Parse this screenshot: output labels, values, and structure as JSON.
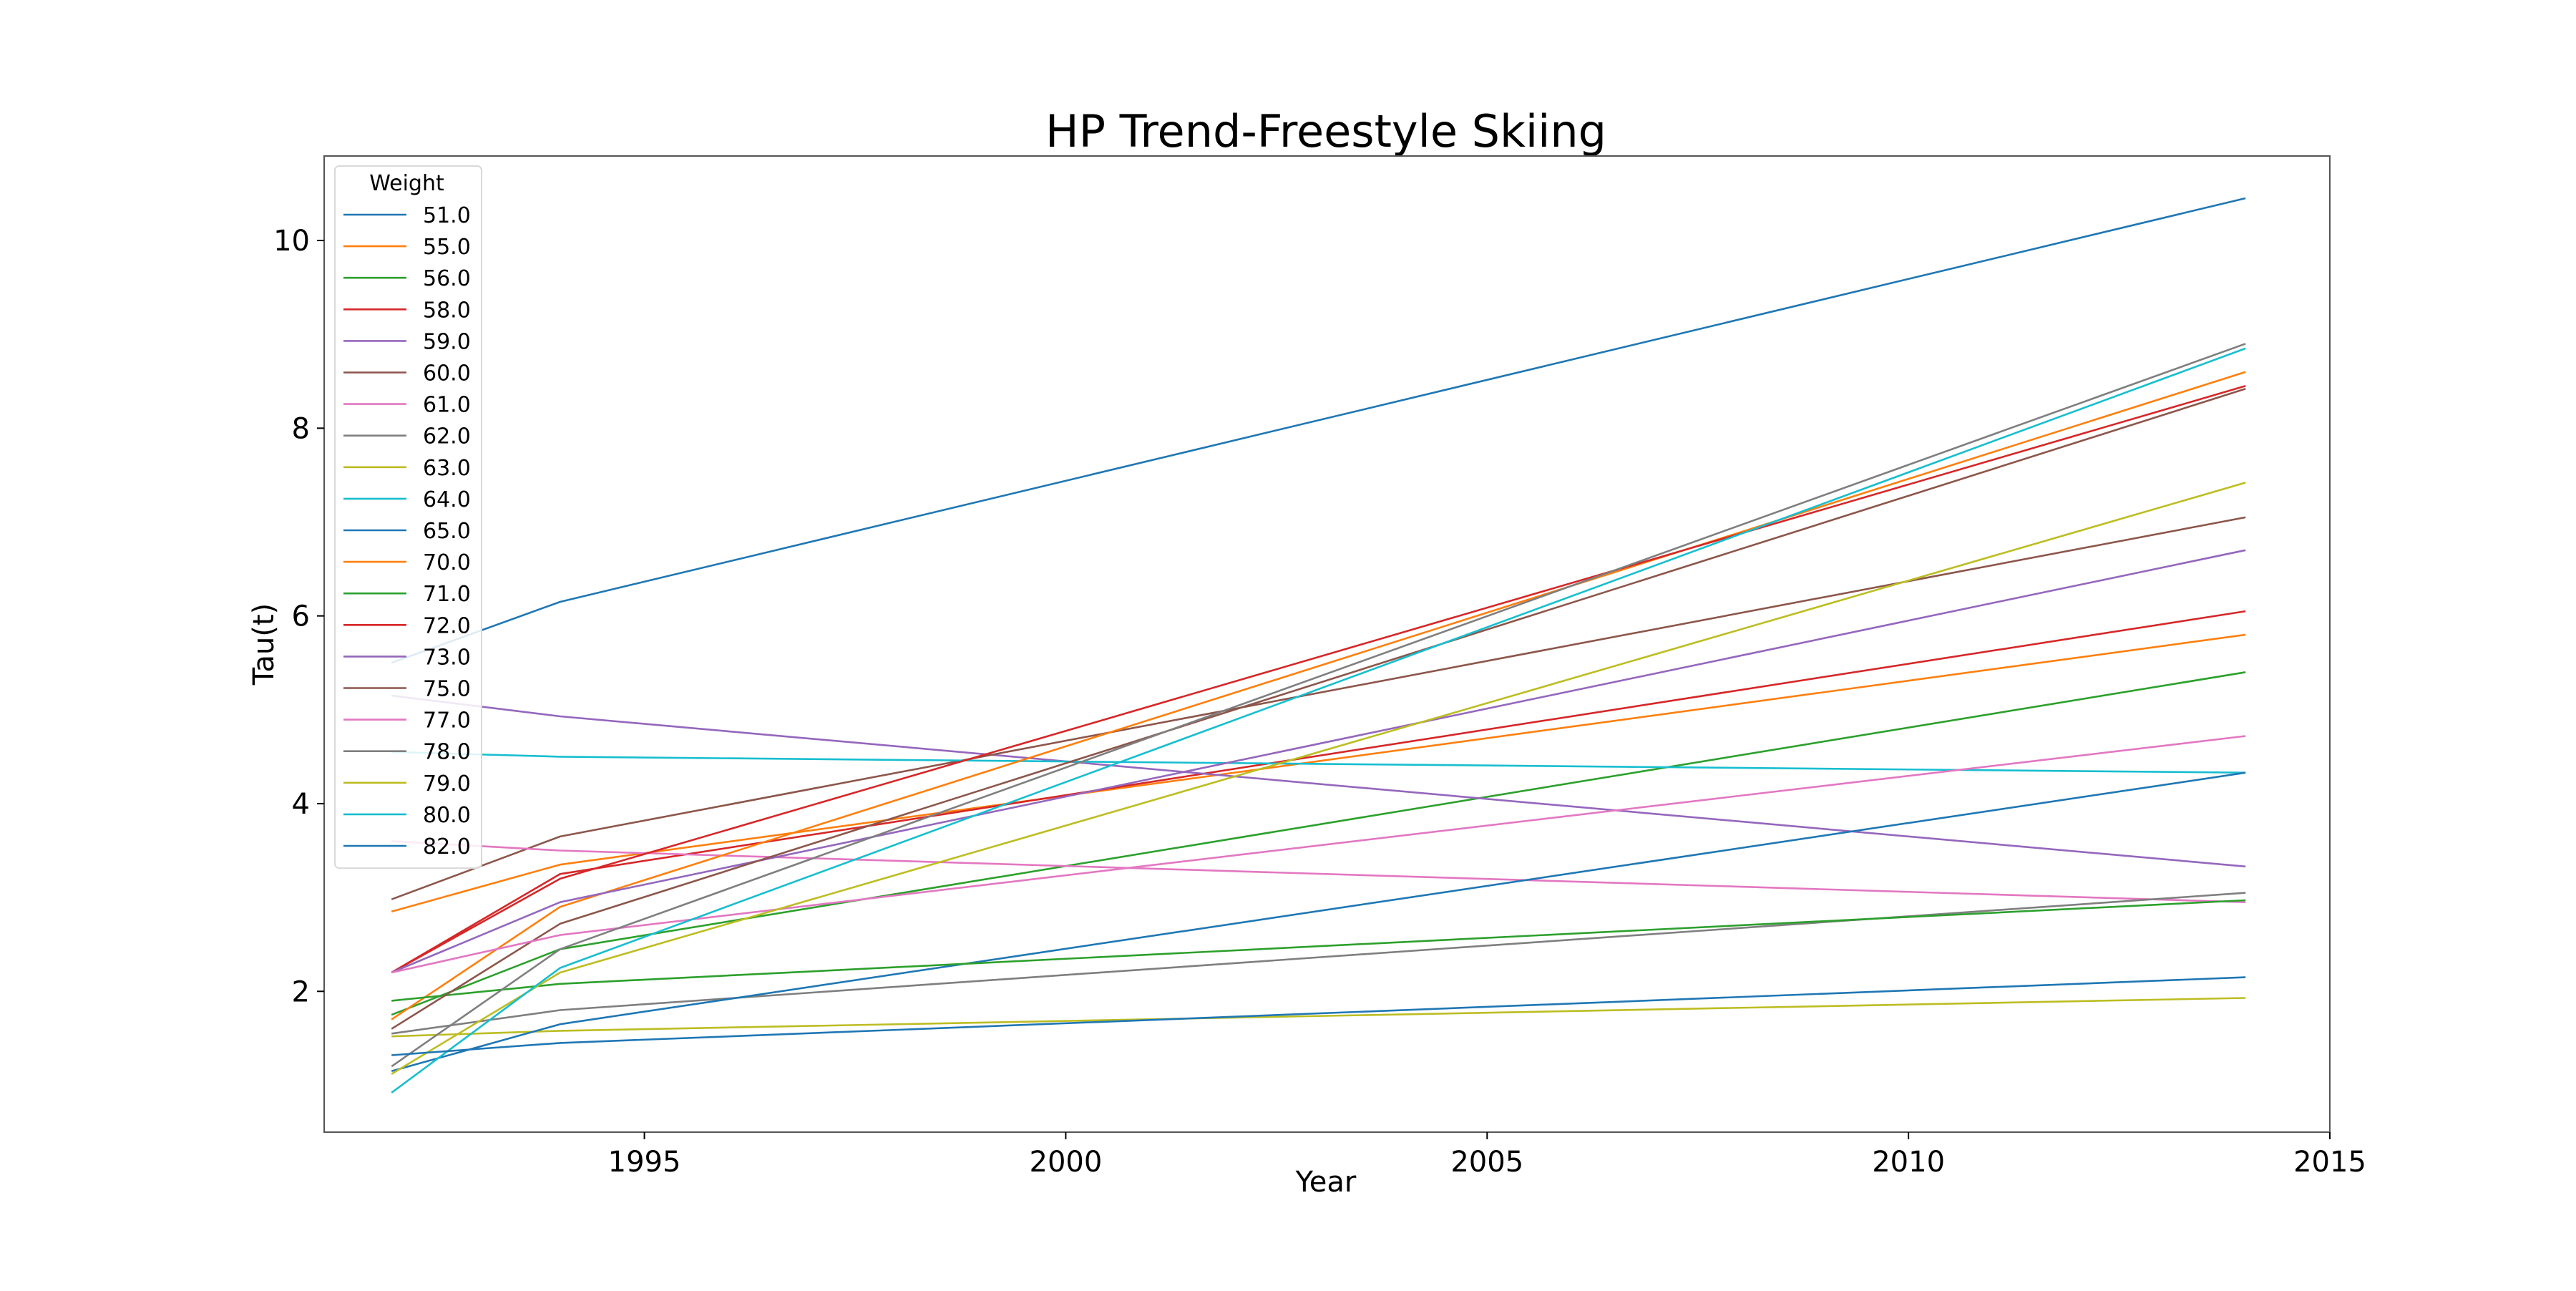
{
  "chart_data": {
    "type": "line",
    "title": "HP Trend-Freestyle Skiing",
    "xlabel": "Year",
    "ylabel": "Tau(t)",
    "xlim": [
      1991.2,
      2015.0
    ],
    "ylim": [
      0.5,
      10.9
    ],
    "xticks": [
      1995,
      2000,
      2005,
      2010,
      2015
    ],
    "yticks": [
      2,
      4,
      6,
      8,
      10
    ],
    "grid": false,
    "legend": {
      "title": "Weight",
      "placement": "upper-left"
    },
    "x": [
      1992,
      1994,
      2014
    ],
    "series": [
      {
        "name": "51.0",
        "color": "#1f77b4",
        "values": [
          5.5,
          6.15,
          10.45
        ]
      },
      {
        "name": "55.0",
        "color": "#ff7f0e",
        "values": [
          2.85,
          3.35,
          5.8
        ]
      },
      {
        "name": "56.0",
        "color": "#2ca02c",
        "values": [
          1.75,
          2.45,
          5.4
        ]
      },
      {
        "name": "58.0",
        "color": "#d62728",
        "values": [
          2.2,
          3.25,
          6.05
        ]
      },
      {
        "name": "59.0",
        "color": "#9467bd",
        "values": [
          5.15,
          4.93,
          3.33
        ]
      },
      {
        "name": "60.0",
        "color": "#8c564b",
        "values": [
          2.98,
          3.65,
          7.05
        ]
      },
      {
        "name": "61.0",
        "color": "#e377c2",
        "values": [
          3.6,
          3.5,
          2.95
        ]
      },
      {
        "name": "62.0",
        "color": "#7f7f7f",
        "values": [
          1.55,
          1.8,
          3.05
        ]
      },
      {
        "name": "63.0",
        "color": "#bcbd22",
        "values": [
          1.52,
          1.58,
          1.93
        ]
      },
      {
        "name": "64.0",
        "color": "#17becf",
        "values": [
          4.55,
          4.5,
          4.33
        ]
      },
      {
        "name": "65.0",
        "color": "#1f77b4",
        "values": [
          1.15,
          1.65,
          4.33
        ]
      },
      {
        "name": "70.0",
        "color": "#ff7f0e",
        "values": [
          1.7,
          2.9,
          8.6
        ]
      },
      {
        "name": "71.0",
        "color": "#2ca02c",
        "values": [
          1.9,
          2.08,
          2.97
        ]
      },
      {
        "name": "72.0",
        "color": "#d62728",
        "values": [
          2.2,
          3.2,
          8.45
        ]
      },
      {
        "name": "73.0",
        "color": "#9467bd",
        "values": [
          2.2,
          2.95,
          6.7
        ]
      },
      {
        "name": "75.0",
        "color": "#8c564b",
        "values": [
          1.6,
          2.72,
          8.42
        ]
      },
      {
        "name": "77.0",
        "color": "#e377c2",
        "values": [
          2.2,
          2.6,
          4.72
        ]
      },
      {
        "name": "78.0",
        "color": "#7f7f7f",
        "values": [
          1.2,
          2.45,
          8.9
        ]
      },
      {
        "name": "79.0",
        "color": "#bcbd22",
        "values": [
          1.12,
          2.2,
          7.42
        ]
      },
      {
        "name": "80.0",
        "color": "#17becf",
        "values": [
          0.92,
          2.25,
          8.85
        ]
      },
      {
        "name": "82.0",
        "color": "#1f77b4",
        "values": [
          1.32,
          1.45,
          2.15
        ]
      }
    ]
  }
}
